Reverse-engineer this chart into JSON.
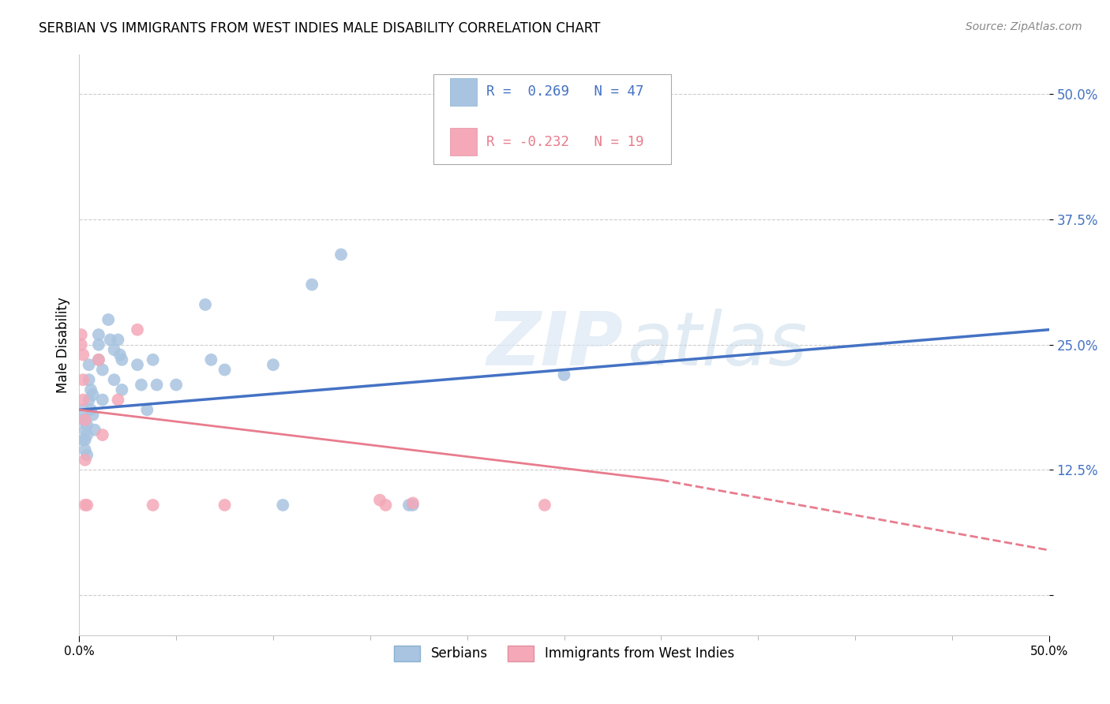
{
  "title": "SERBIAN VS IMMIGRANTS FROM WEST INDIES MALE DISABILITY CORRELATION CHART",
  "source": "Source: ZipAtlas.com",
  "ylabel": "Male Disability",
  "legend_label1": "Serbians",
  "legend_label2": "Immigrants from West Indies",
  "R1": 0.269,
  "N1": 47,
  "R2": -0.232,
  "N2": 19,
  "xlim": [
    0.0,
    0.5
  ],
  "ylim": [
    -0.04,
    0.54
  ],
  "yticks": [
    0.0,
    0.125,
    0.25,
    0.375,
    0.5
  ],
  "ytick_labels": [
    "",
    "12.5%",
    "25.0%",
    "37.5%",
    "50.0%"
  ],
  "color_serbian": "#a8c4e0",
  "color_westindies": "#f4a8b8",
  "color_line_serbian": "#4472c4",
  "color_line_westindies": "#e87c8d",
  "watermark_zip": "ZIP",
  "watermark_atlas": "atlas",
  "serbian_x": [
    0.002,
    0.002,
    0.002,
    0.003,
    0.003,
    0.003,
    0.003,
    0.004,
    0.004,
    0.004,
    0.005,
    0.005,
    0.005,
    0.006,
    0.006,
    0.007,
    0.007,
    0.008,
    0.01,
    0.01,
    0.01,
    0.012,
    0.012,
    0.015,
    0.016,
    0.018,
    0.018,
    0.02,
    0.021,
    0.022,
    0.022,
    0.03,
    0.032,
    0.035,
    0.038,
    0.04,
    0.05,
    0.065,
    0.068,
    0.075,
    0.1,
    0.105,
    0.12,
    0.135,
    0.17,
    0.172,
    0.25
  ],
  "serbian_y": [
    0.185,
    0.175,
    0.155,
    0.175,
    0.165,
    0.155,
    0.145,
    0.17,
    0.16,
    0.14,
    0.23,
    0.215,
    0.195,
    0.205,
    0.185,
    0.2,
    0.18,
    0.165,
    0.26,
    0.25,
    0.235,
    0.225,
    0.195,
    0.275,
    0.255,
    0.245,
    0.215,
    0.255,
    0.24,
    0.235,
    0.205,
    0.23,
    0.21,
    0.185,
    0.235,
    0.21,
    0.21,
    0.29,
    0.235,
    0.225,
    0.23,
    0.09,
    0.31,
    0.34,
    0.09,
    0.09,
    0.22
  ],
  "westindies_x": [
    0.001,
    0.001,
    0.002,
    0.002,
    0.002,
    0.003,
    0.003,
    0.003,
    0.01,
    0.012,
    0.02,
    0.03,
    0.038,
    0.075,
    0.155,
    0.158,
    0.172,
    0.24,
    0.004
  ],
  "westindies_y": [
    0.26,
    0.25,
    0.24,
    0.215,
    0.195,
    0.175,
    0.135,
    0.09,
    0.235,
    0.16,
    0.195,
    0.265,
    0.09,
    0.09,
    0.095,
    0.09,
    0.092,
    0.09,
    0.09
  ],
  "blue_line_x0": 0.0,
  "blue_line_y0": 0.185,
  "blue_line_x1": 0.5,
  "blue_line_y1": 0.265,
  "pink_line_x0": 0.0,
  "pink_line_y0": 0.185,
  "pink_line_x1_solid": 0.3,
  "pink_line_y1_solid": 0.115,
  "pink_line_x1_dash": 0.5,
  "pink_line_y1_dash": 0.045
}
